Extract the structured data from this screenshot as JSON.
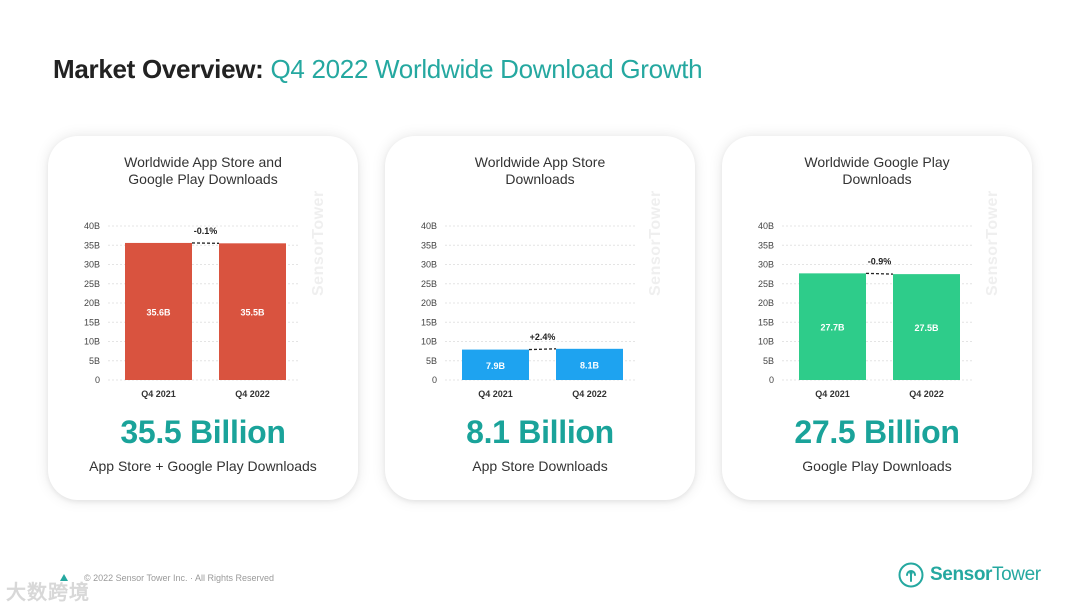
{
  "header": {
    "title_bold": "Market Overview:",
    "title_light": "Q4 2022 Worldwide Download Growth"
  },
  "colors": {
    "accent": "#1aa39a",
    "combined_bar": "#d9533f",
    "app_store_bar": "#1ea3f0",
    "google_play_bar": "#2ecc8a"
  },
  "cards": [
    {
      "title_lines": [
        "Worldwide App Store and",
        "Google Play Downloads"
      ],
      "headline": "35.5 Billion",
      "subtitle": "App Store + Google Play Downloads"
    },
    {
      "title_lines": [
        "Worldwide App Store",
        "Downloads"
      ],
      "headline": "8.1 Billion",
      "subtitle": "App Store Downloads"
    },
    {
      "title_lines": [
        "Worldwide Google Play",
        "Downloads"
      ],
      "headline": "27.5 Billion",
      "subtitle": "Google Play Downloads"
    }
  ],
  "chart_data": [
    {
      "type": "bar",
      "title": "Worldwide App Store and Google Play Downloads",
      "categories": [
        "Q4 2021",
        "Q4 2022"
      ],
      "values": [
        35.6,
        35.5
      ],
      "value_labels": [
        "35.6B",
        "35.5B"
      ],
      "y_ticks": [
        "0",
        "5B",
        "10B",
        "15B",
        "20B",
        "25B",
        "30B",
        "35B",
        "40B"
      ],
      "ylim": [
        0,
        40
      ],
      "change_label": "-0.1%",
      "grid": true,
      "color": "#d9533f"
    },
    {
      "type": "bar",
      "title": "Worldwide App Store Downloads",
      "categories": [
        "Q4 2021",
        "Q4 2022"
      ],
      "values": [
        7.9,
        8.1
      ],
      "value_labels": [
        "7.9B",
        "8.1B"
      ],
      "y_ticks": [
        "0",
        "5B",
        "10B",
        "15B",
        "20B",
        "25B",
        "30B",
        "35B",
        "40B"
      ],
      "ylim": [
        0,
        40
      ],
      "change_label": "+2.4%",
      "grid": true,
      "color": "#1ea3f0"
    },
    {
      "type": "bar",
      "title": "Worldwide Google Play Downloads",
      "categories": [
        "Q4 2021",
        "Q4 2022"
      ],
      "values": [
        27.7,
        27.5
      ],
      "value_labels": [
        "27.7B",
        "27.5B"
      ],
      "y_ticks": [
        "0",
        "5B",
        "10B",
        "15B",
        "20B",
        "25B",
        "30B",
        "35B",
        "40B"
      ],
      "ylim": [
        0,
        40
      ],
      "change_label": "-0.9%",
      "grid": true,
      "color": "#2ecc8a"
    }
  ],
  "watermark": "SensorTower",
  "footer": {
    "copyright": "© 2022 Sensor Tower Inc. · All Rights Reserved"
  },
  "logo": {
    "bold": "Sensor",
    "light": "Tower"
  },
  "corner_mark": "大数跨境"
}
